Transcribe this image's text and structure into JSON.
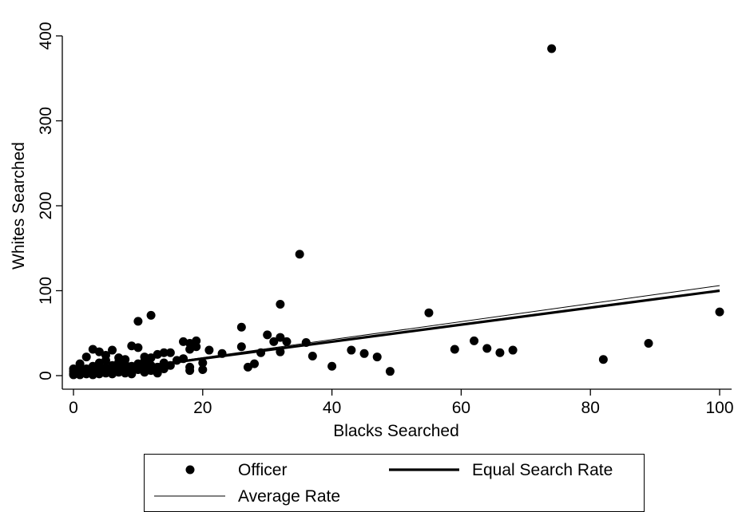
{
  "chart_data": {
    "type": "scatter",
    "title": "",
    "xlabel": "Blacks Searched",
    "ylabel": "Whites Searched",
    "xlim": [
      0,
      100
    ],
    "ylim": [
      0,
      400
    ],
    "xticks": [
      0,
      20,
      40,
      60,
      80,
      100
    ],
    "yticks": [
      0,
      100,
      200,
      300,
      400
    ],
    "grid": false,
    "legend_position": "bottom",
    "series": [
      {
        "name": "Officer",
        "kind": "scatter",
        "color": "#000000",
        "points": [
          [
            0,
            2
          ],
          [
            0,
            5
          ],
          [
            0,
            8
          ],
          [
            0,
            1
          ],
          [
            1,
            3
          ],
          [
            1,
            6
          ],
          [
            1,
            10
          ],
          [
            1,
            1
          ],
          [
            1,
            14
          ],
          [
            2,
            2
          ],
          [
            2,
            5
          ],
          [
            2,
            8
          ],
          [
            2,
            22
          ],
          [
            3,
            4
          ],
          [
            3,
            11
          ],
          [
            3,
            31
          ],
          [
            3,
            1
          ],
          [
            4,
            2
          ],
          [
            4,
            7
          ],
          [
            4,
            15
          ],
          [
            4,
            28
          ],
          [
            5,
            3
          ],
          [
            5,
            9
          ],
          [
            5,
            18
          ],
          [
            5,
            24
          ],
          [
            6,
            2
          ],
          [
            6,
            6
          ],
          [
            6,
            12
          ],
          [
            6,
            30
          ],
          [
            7,
            4
          ],
          [
            7,
            10
          ],
          [
            7,
            16
          ],
          [
            7,
            21
          ],
          [
            8,
            3
          ],
          [
            8,
            8
          ],
          [
            8,
            13
          ],
          [
            8,
            19
          ],
          [
            9,
            5
          ],
          [
            9,
            11
          ],
          [
            9,
            35
          ],
          [
            9,
            2
          ],
          [
            10,
            7
          ],
          [
            10,
            14
          ],
          [
            10,
            33
          ],
          [
            10,
            64
          ],
          [
            11,
            4
          ],
          [
            11,
            9
          ],
          [
            11,
            17
          ],
          [
            11,
            22
          ],
          [
            12,
            6
          ],
          [
            12,
            12
          ],
          [
            12,
            21
          ],
          [
            12,
            71
          ],
          [
            13,
            3
          ],
          [
            13,
            10
          ],
          [
            13,
            25
          ],
          [
            14,
            8
          ],
          [
            14,
            15
          ],
          [
            14,
            27
          ],
          [
            15,
            12
          ],
          [
            15,
            27
          ],
          [
            16,
            18
          ],
          [
            17,
            20
          ],
          [
            17,
            40
          ],
          [
            18,
            6
          ],
          [
            18,
            10
          ],
          [
            18,
            31
          ],
          [
            18,
            38
          ],
          [
            19,
            34
          ],
          [
            19,
            41
          ],
          [
            20,
            7
          ],
          [
            20,
            15
          ],
          [
            21,
            30
          ],
          [
            23,
            26
          ],
          [
            26,
            34
          ],
          [
            26,
            57
          ],
          [
            27,
            10
          ],
          [
            28,
            14
          ],
          [
            29,
            27
          ],
          [
            30,
            48
          ],
          [
            31,
            40
          ],
          [
            32,
            28
          ],
          [
            32,
            45
          ],
          [
            32,
            84
          ],
          [
            33,
            40
          ],
          [
            35,
            143
          ],
          [
            36,
            39
          ],
          [
            37,
            23
          ],
          [
            40,
            11
          ],
          [
            43,
            30
          ],
          [
            45,
            26
          ],
          [
            47,
            22
          ],
          [
            49,
            5
          ],
          [
            55,
            74
          ],
          [
            59,
            31
          ],
          [
            62,
            41
          ],
          [
            64,
            32
          ],
          [
            66,
            27
          ],
          [
            68,
            30
          ],
          [
            74,
            385
          ],
          [
            82,
            19
          ],
          [
            89,
            38
          ],
          [
            100,
            75
          ]
        ]
      },
      {
        "name": "Equal Search Rate",
        "kind": "line",
        "color": "#000000",
        "x": [
          0,
          100
        ],
        "y": [
          0,
          100
        ]
      },
      {
        "name": "Average Rate",
        "kind": "line",
        "color": "#000000",
        "x": [
          0,
          100
        ],
        "y": [
          0,
          106
        ]
      }
    ]
  }
}
